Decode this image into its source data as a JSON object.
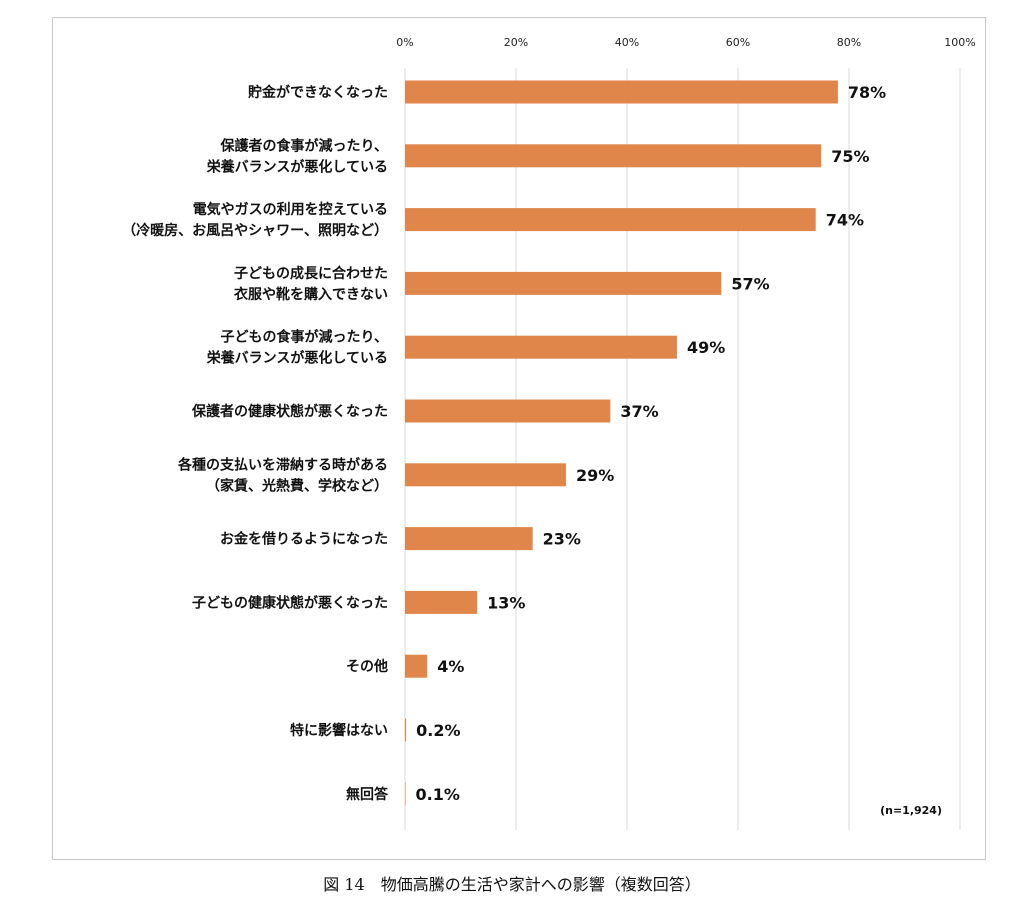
{
  "chart_data": {
    "type": "bar",
    "orientation": "horizontal",
    "categories": [
      [
        "貯金ができなくなった"
      ],
      [
        "保護者の食事が減ったり、",
        "栄養バランスが悪化している"
      ],
      [
        "電気やガスの利用を控えている",
        "（冷暖房、お風呂やシャワー、照明など）"
      ],
      [
        "子どもの成長に合わせた",
        "衣服や靴を購入できない"
      ],
      [
        "子どもの食事が減ったり、",
        "栄養バランスが悪化している"
      ],
      [
        "保護者の健康状態が悪くなった"
      ],
      [
        "各種の支払いを滞納する時がある",
        "（家賃、光熱費、学校など）"
      ],
      [
        "お金を借りるようになった"
      ],
      [
        "子どもの健康状態が悪くなった"
      ],
      [
        "その他"
      ],
      [
        "特に影響はない"
      ],
      [
        "無回答"
      ]
    ],
    "values": [
      78,
      75,
      74,
      57,
      49,
      37,
      29,
      23,
      13,
      4,
      0.2,
      0.1
    ],
    "value_labels": [
      "78%",
      "75%",
      "74%",
      "57%",
      "49%",
      "37%",
      "29%",
      "23%",
      "13%",
      "4%",
      "0.2%",
      "0.1%"
    ],
    "xlim": [
      0,
      100
    ],
    "ticks": [
      0,
      20,
      40,
      60,
      80,
      100
    ],
    "tick_labels": [
      "0%",
      "20%",
      "40%",
      "60%",
      "80%",
      "100%"
    ],
    "axis_position": "top",
    "grid": true,
    "bar_color": "#e0864a",
    "grid_color": "#d9d9d9",
    "note": "(n=1,924)"
  },
  "caption": "図 14　物価高騰の生活や家計への影響（複数回答）"
}
